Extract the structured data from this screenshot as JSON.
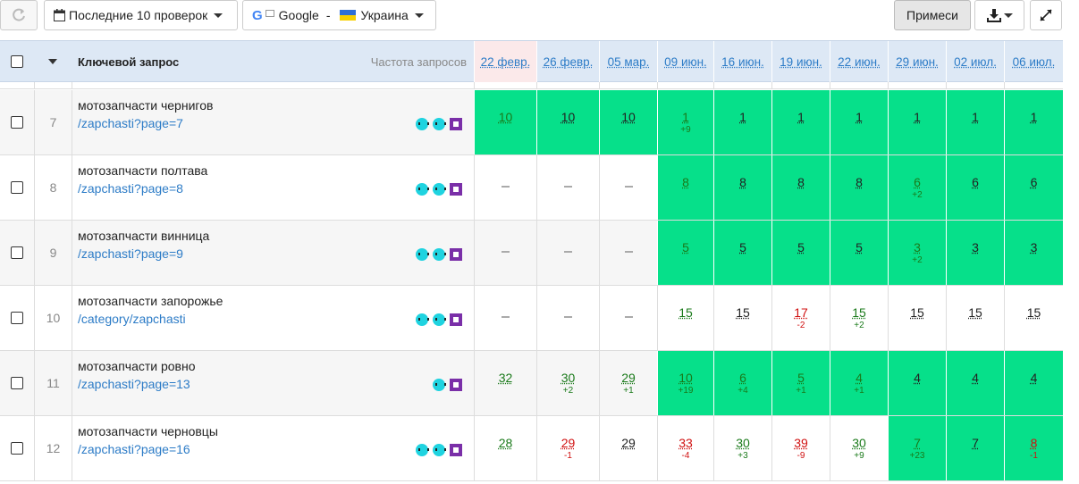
{
  "toolbar": {
    "period_label": "Последние 10 проверок",
    "engine_logo": "G",
    "engine_label": "Google",
    "separator": "-",
    "region_label": "Украина",
    "mixes_label": "Примеси"
  },
  "table": {
    "keyword_header": "Ключевой запрос",
    "frequency_header": "Частота запросов",
    "dates": [
      "22 февр.",
      "26 февр.",
      "05 мар.",
      "09 июн.",
      "16 июн.",
      "19 июн.",
      "22 июн.",
      "29 июн.",
      "02 июл.",
      "06 июл."
    ],
    "rows": [
      {
        "num": "7",
        "keyword": "мотозапчасти чернигов",
        "url": "/zapchasti?page=7",
        "icons": [
          "teal",
          "teal",
          "square"
        ],
        "cells": [
          {
            "v": "10",
            "c": "green",
            "bg": true
          },
          {
            "v": "10",
            "c": "black",
            "bg": true
          },
          {
            "v": "10",
            "c": "black",
            "bg": true
          },
          {
            "v": "1",
            "d": "+9",
            "c": "green",
            "bg": true
          },
          {
            "v": "1",
            "c": "black",
            "bg": true
          },
          {
            "v": "1",
            "c": "black",
            "bg": true
          },
          {
            "v": "1",
            "c": "black",
            "bg": true
          },
          {
            "v": "1",
            "c": "black",
            "bg": true
          },
          {
            "v": "1",
            "c": "black",
            "bg": true
          },
          {
            "v": "1",
            "c": "black",
            "bg": true
          }
        ]
      },
      {
        "num": "8",
        "keyword": "мотозапчасти полтава",
        "url": "/zapchasti?page=8",
        "icons": [
          "teal",
          "teal",
          "square"
        ],
        "cells": [
          {
            "dash": true
          },
          {
            "dash": true
          },
          {
            "dash": true
          },
          {
            "v": "8",
            "c": "green",
            "bg": true
          },
          {
            "v": "8",
            "c": "black",
            "bg": true
          },
          {
            "v": "8",
            "c": "black",
            "bg": true
          },
          {
            "v": "8",
            "c": "black",
            "bg": true
          },
          {
            "v": "6",
            "d": "+2",
            "c": "green",
            "bg": true
          },
          {
            "v": "6",
            "c": "black",
            "bg": true
          },
          {
            "v": "6",
            "c": "black",
            "bg": true
          }
        ]
      },
      {
        "num": "9",
        "keyword": "мотозапчасти винница",
        "url": "/zapchasti?page=9",
        "icons": [
          "teal",
          "teal",
          "square"
        ],
        "cells": [
          {
            "dash": true
          },
          {
            "dash": true
          },
          {
            "dash": true
          },
          {
            "v": "5",
            "c": "green",
            "bg": true
          },
          {
            "v": "5",
            "c": "black",
            "bg": true
          },
          {
            "v": "5",
            "c": "black",
            "bg": true
          },
          {
            "v": "5",
            "c": "black",
            "bg": true
          },
          {
            "v": "3",
            "d": "+2",
            "c": "green",
            "bg": true
          },
          {
            "v": "3",
            "c": "black",
            "bg": true
          },
          {
            "v": "3",
            "c": "black",
            "bg": true
          }
        ]
      },
      {
        "num": "10",
        "keyword": "мотозапчасти запорожье",
        "url": "/category/zapchasti",
        "icons": [
          "teal",
          "teal",
          "square"
        ],
        "cells": [
          {
            "dash": true
          },
          {
            "dash": true
          },
          {
            "dash": true
          },
          {
            "v": "15",
            "c": "green"
          },
          {
            "v": "15",
            "c": "black"
          },
          {
            "v": "17",
            "d": "-2",
            "c": "red"
          },
          {
            "v": "15",
            "d": "+2",
            "c": "green"
          },
          {
            "v": "15",
            "c": "black"
          },
          {
            "v": "15",
            "c": "black"
          },
          {
            "v": "15",
            "c": "black"
          }
        ]
      },
      {
        "num": "11",
        "keyword": "мотозапчасти ровно",
        "url": "/zapchasti?page=13",
        "icons": [
          "teal",
          "square"
        ],
        "cells": [
          {
            "v": "32",
            "c": "green"
          },
          {
            "v": "30",
            "d": "+2",
            "c": "green"
          },
          {
            "v": "29",
            "d": "+1",
            "c": "green"
          },
          {
            "v": "10",
            "d": "+19",
            "c": "green",
            "bg": true
          },
          {
            "v": "6",
            "d": "+4",
            "c": "green",
            "bg": true
          },
          {
            "v": "5",
            "d": "+1",
            "c": "green",
            "bg": true
          },
          {
            "v": "4",
            "d": "+1",
            "c": "green",
            "bg": true
          },
          {
            "v": "4",
            "c": "black",
            "bg": true
          },
          {
            "v": "4",
            "c": "black",
            "bg": true
          },
          {
            "v": "4",
            "c": "black",
            "bg": true
          }
        ]
      },
      {
        "num": "12",
        "keyword": "мотозапчасти черновцы",
        "url": "/zapchasti?page=16",
        "icons": [
          "teal",
          "teal",
          "square"
        ],
        "cells": [
          {
            "v": "28",
            "c": "green"
          },
          {
            "v": "29",
            "d": "-1",
            "c": "red"
          },
          {
            "v": "29",
            "c": "black"
          },
          {
            "v": "33",
            "d": "-4",
            "c": "red"
          },
          {
            "v": "30",
            "d": "+3",
            "c": "green"
          },
          {
            "v": "39",
            "d": "-9",
            "c": "red"
          },
          {
            "v": "30",
            "d": "+9",
            "c": "green"
          },
          {
            "v": "7",
            "d": "+23",
            "c": "green",
            "bg": true
          },
          {
            "v": "7",
            "c": "black",
            "bg": true
          },
          {
            "v": "8",
            "d": "-1",
            "c": "red",
            "bg": true
          }
        ]
      }
    ]
  },
  "colors": {
    "accent": "#2d7cc7",
    "positive_bg": "#06e08a",
    "header_bg": "#dde8f5",
    "up": "#1a7a1a",
    "down": "#d01010"
  }
}
